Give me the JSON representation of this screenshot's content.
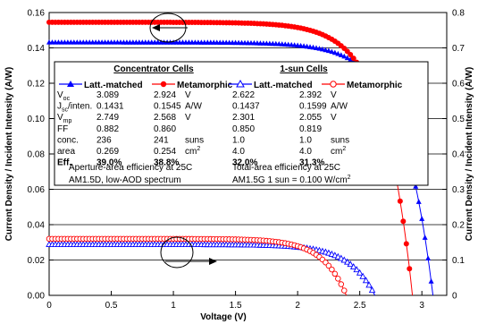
{
  "chart_data": {
    "type": "scatter",
    "xlabel": "Voltage (V)",
    "ylabel_left": "Current Density / Incident Intensity (A/W)",
    "ylabel_right": "Current Density / Incident Intensity (A/W)",
    "xlim": [
      0,
      3.2
    ],
    "ylim_left": [
      0,
      0.16
    ],
    "ylim_right": [
      0,
      0.8
    ],
    "x_ticks": [
      "0",
      "0.5",
      "1",
      "1.5",
      "2",
      "2.5",
      "3"
    ],
    "y_ticks_left": [
      "0.00",
      "0.02",
      "0.04",
      "0.06",
      "0.08",
      "0.10",
      "0.12",
      "0.14",
      "0.16"
    ],
    "y_ticks_right": [
      "0",
      "0.1",
      "0.2",
      "0.3",
      "0.4",
      "0.5",
      "0.6",
      "0.7",
      "0.8"
    ],
    "grid": "horizontal",
    "series": [
      {
        "name": "Latt.-matched",
        "group": "Concentrator Cells",
        "axis": "left",
        "color": "#0000ff",
        "marker": "filled-triangle",
        "jsc": 0.1431,
        "voc": 3.089,
        "vmp": 2.749,
        "ff": 0.882
      },
      {
        "name": "Metamorphic",
        "group": "Concentrator Cells",
        "axis": "left",
        "color": "#ff0000",
        "marker": "filled-circle",
        "jsc": 0.1545,
        "voc": 2.924,
        "vmp": 2.568,
        "ff": 0.86
      },
      {
        "name": "Latt.-matched",
        "group": "1-sun Cells",
        "axis": "right",
        "color": "#0000ff",
        "marker": "open-triangle",
        "jsc": 0.1437,
        "voc": 2.622,
        "vmp": 2.301,
        "ff": 0.85
      },
      {
        "name": "Metamorphic",
        "group": "1-sun Cells",
        "axis": "right",
        "color": "#ff0000",
        "marker": "open-circle",
        "jsc": 0.1599,
        "voc": 2.392,
        "vmp": 2.055,
        "ff": 0.819
      }
    ]
  },
  "table": {
    "conc_header": "Concentrator Cells",
    "sun_header": "1-sun Cells",
    "legend": {
      "lm_conc": "Latt.-matched",
      "mm_conc": "Metamorphic",
      "lm_sun": "Latt.-matched",
      "mm_sun": "Metamorphic"
    },
    "rows": [
      {
        "label": "V",
        "sub": "oc",
        "after": "",
        "c1": "3.089",
        "c2": "2.924",
        "u1": "V",
        "c3": "2.622",
        "c4": "2.392",
        "u2": "V",
        "u2sup": "",
        "bold": false
      },
      {
        "label": "J",
        "sub": "sc",
        "after": "/inten.",
        "c1": "0.1431",
        "c2": "0.1545",
        "u1": "A/W",
        "c3": "0.1437",
        "c4": "0.1599",
        "u2": "A/W",
        "u2sup": "",
        "bold": false
      },
      {
        "label": "V",
        "sub": "mp",
        "after": "",
        "c1": "2.749",
        "c2": "2.568",
        "u1": "V",
        "c3": "2.301",
        "c4": "2.055",
        "u2": "V",
        "u2sup": "",
        "bold": false
      },
      {
        "label": "FF",
        "sub": "",
        "after": "",
        "c1": "0.882",
        "c2": "0.860",
        "u1": "",
        "c3": "0.850",
        "c4": "0.819",
        "u2": "",
        "u2sup": "",
        "bold": false
      },
      {
        "label": "conc.",
        "sub": "",
        "after": "",
        "c1": "236",
        "c2": "241",
        "u1": "suns",
        "c3": "1.0",
        "c4": "1.0",
        "u2": "suns",
        "u2sup": "",
        "bold": false
      },
      {
        "label": "area",
        "sub": "",
        "after": "",
        "c1": "0.269",
        "c2": "0.254",
        "u1": "cm",
        "c3": "4.0",
        "c4": "4.0",
        "u2": "cm",
        "u2sup": "2",
        "bold": false
      },
      {
        "label": "Eff.",
        "sub": "",
        "after": "",
        "c1": "39.0%",
        "c2": "38.8%",
        "u1": "",
        "c3": "32.0%",
        "c4": "31.3%",
        "u2": "",
        "u2sup": "",
        "bold": true
      }
    ],
    "note_conc_1": "Aperture-area efficiency at 25C",
    "note_conc_2": "AM1.5D, low-AOD spectrum",
    "note_sun_1": "Total-area efficiency at 25C",
    "note_sun_2a": "AM1.5G   1 sun = 0.100 W/cm",
    "note_sun_2sup": "2"
  }
}
